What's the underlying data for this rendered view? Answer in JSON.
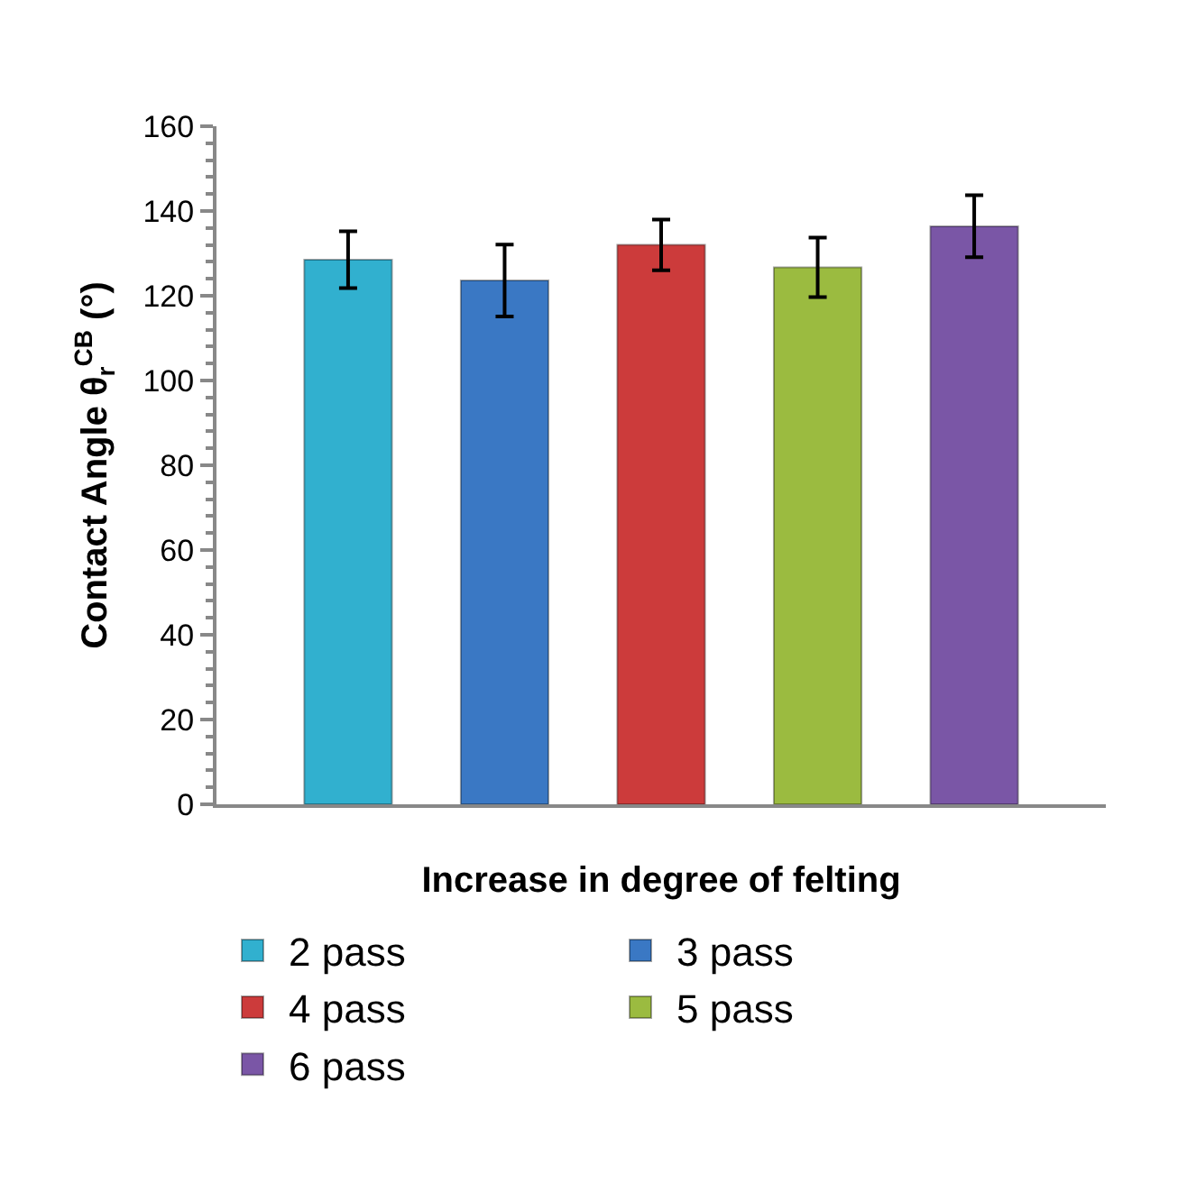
{
  "chart_data": {
    "type": "bar",
    "xlabel": "Increase in degree of felting",
    "ylabel": "Contact Angle θ$_{r}$$^{CB}$ (°)",
    "categories": [
      null
    ],
    "series": [
      {
        "name": "2 pass",
        "color": "#31b0cf",
        "values": [
          128.5
        ],
        "errors": [
          6.7
        ]
      },
      {
        "name": "3 pass",
        "color": "#3a78c4",
        "values": [
          123.6
        ],
        "errors": [
          8.5
        ]
      },
      {
        "name": "4 pass",
        "color": "#cc3b3b",
        "values": [
          132
        ],
        "errors": [
          6
        ]
      },
      {
        "name": "5 pass",
        "color": "#9bbb40",
        "values": [
          126.7
        ],
        "errors": [
          7
        ]
      },
      {
        "name": "6 pass",
        "color": "#7a56a6",
        "values": [
          136.4
        ],
        "errors": [
          7.3
        ]
      }
    ],
    "ylim": [
      0,
      160
    ],
    "yticks": [
      0,
      20,
      40,
      60,
      80,
      100,
      120,
      140,
      160
    ],
    "grid": false,
    "legend": "bottom"
  }
}
